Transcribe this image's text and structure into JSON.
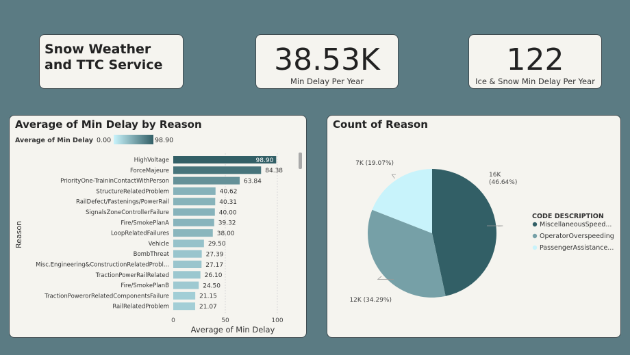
{
  "title_card": {
    "line1": "Snow Weather",
    "line2": "and TTC Service"
  },
  "kpis": [
    {
      "value": "38.53K",
      "label": "Min Delay Per Year"
    },
    {
      "value": "122",
      "label": "Ice & Snow Min Delay Per Year"
    }
  ],
  "colors": {
    "bar_low": "#c8f3fb",
    "bar_high": "#325f66",
    "pie": [
      "#325f66",
      "#76a0a7",
      "#c8f3fb"
    ]
  },
  "chart_data": [
    {
      "type": "bar",
      "orientation": "horizontal",
      "title": "Average of Min Delay by Reason",
      "legend_title": "Average of Min Delay",
      "legend_min": "0.00",
      "legend_max": "98.90",
      "xlabel": "Average of Min Delay",
      "ylabel": "Reason",
      "xlim": [
        0,
        100
      ],
      "xticks": [
        0,
        50,
        100
      ],
      "categories": [
        "HighVoltage",
        "ForceMajeure",
        "PriorityOne-TraininContactWithPerson",
        "StructureRelatedProblem",
        "RailDefect/Fastenings/PowerRail",
        "SignalsZoneControllerFailure",
        "Fire/SmokePlanA",
        "LoopRelatedFailures",
        "Vehicle",
        "BombThreat",
        "Misc.Engineering&ConstructionRelatedProbl...",
        "TractionPowerRailRelated",
        "Fire/SmokePlanB",
        "TractionPowerorRelatedComponentsFailure",
        "RailRelatedProblem"
      ],
      "values": [
        98.9,
        84.38,
        63.84,
        40.62,
        40.31,
        40.0,
        39.32,
        38.0,
        29.5,
        27.39,
        27.17,
        26.1,
        24.5,
        21.15,
        21.07
      ],
      "labels": [
        "98.90",
        "84.38",
        "63.84",
        "40.62",
        "40.31",
        "40.00",
        "39.32",
        "38.00",
        "29.50",
        "27.39",
        "27.17",
        "26.10",
        "24.50",
        "21.15",
        "21.07"
      ]
    },
    {
      "type": "pie",
      "title": "Count of Reason",
      "legend_title": "CODE DESCRIPTION",
      "series": [
        {
          "name": "MiscellaneousSpeed...",
          "value": 46.64,
          "label1": "16K",
          "label2": "(46.64%)"
        },
        {
          "name": "OperatorOverspeeding",
          "value": 34.29,
          "label1": "12K (34.29%)",
          "label2": ""
        },
        {
          "name": "PassengerAssistance...",
          "value": 19.07,
          "label1": "7K (19.07%)",
          "label2": ""
        }
      ]
    }
  ]
}
